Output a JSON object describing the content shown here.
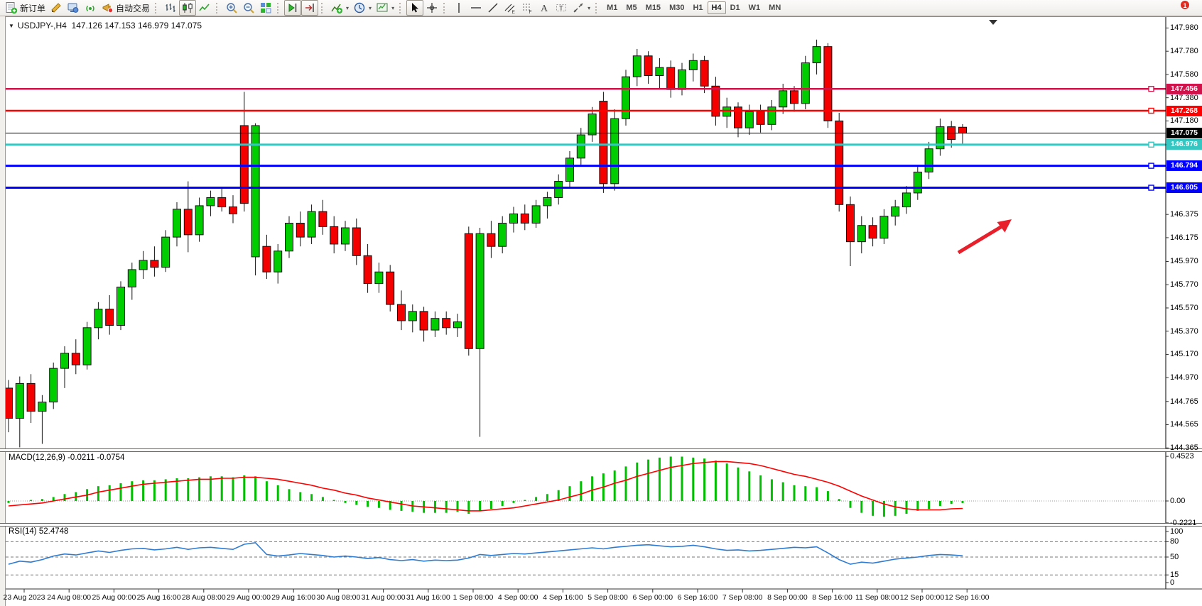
{
  "toolbar": {
    "caret_glyph": "▾",
    "groups": [
      {
        "name": "trade-group",
        "items": [
          {
            "name": "new-order-button",
            "icon": "new-order",
            "label": "新订单"
          },
          {
            "name": "metaeditor-button",
            "icon": "editor"
          },
          {
            "name": "strategy-tester-button",
            "icon": "tester"
          },
          {
            "name": "signals-button",
            "icon": "signals"
          },
          {
            "name": "auto-trading-button",
            "icon": "autotrading",
            "label": "自动交易"
          }
        ]
      },
      {
        "name": "chart-type-group",
        "items": [
          {
            "name": "bar-chart-button",
            "icon": "chart-bars"
          },
          {
            "name": "candlestick-chart-button",
            "icon": "chart-candles",
            "active": true
          },
          {
            "name": "line-chart-button",
            "icon": "chart-line"
          }
        ]
      },
      {
        "name": "zoom-group",
        "items": [
          {
            "name": "zoom-in-button",
            "icon": "zoom-in"
          },
          {
            "name": "zoom-out-button",
            "icon": "zoom-out"
          },
          {
            "name": "tile-windows-button",
            "icon": "tile-windows"
          }
        ]
      },
      {
        "name": "scroll-group",
        "items": [
          {
            "name": "auto-scroll-button",
            "icon": "auto-scroll",
            "active": true
          },
          {
            "name": "chart-shift-button",
            "icon": "chart-shift",
            "active": true
          }
        ]
      },
      {
        "name": "insert-group",
        "items": [
          {
            "name": "indicators-button",
            "icon": "indicators",
            "caret": true
          },
          {
            "name": "periods-button",
            "icon": "periods",
            "caret": true
          },
          {
            "name": "templates-button",
            "icon": "templates",
            "caret": true
          }
        ]
      },
      {
        "name": "pointer-group",
        "items": [
          {
            "name": "cursor-button",
            "icon": "cursor",
            "active": true
          },
          {
            "name": "crosshair-button",
            "icon": "crosshair"
          }
        ]
      },
      {
        "name": "draw-group",
        "items": [
          {
            "name": "vertical-line-button",
            "icon": "vline"
          },
          {
            "name": "horizontal-line-button",
            "icon": "hline"
          },
          {
            "name": "trendline-button",
            "icon": "trendline"
          },
          {
            "name": "equidistant-channel-button",
            "icon": "channel"
          },
          {
            "name": "fibonacci-button",
            "icon": "fibonacci"
          },
          {
            "name": "text-button",
            "icon": "text"
          },
          {
            "name": "label-button",
            "icon": "label"
          },
          {
            "name": "shapes-button",
            "icon": "shapes",
            "caret": true
          }
        ]
      },
      {
        "name": "timeframe-group",
        "items": [
          {
            "name": "timeframe-m1",
            "label": "M1",
            "tf": true
          },
          {
            "name": "timeframe-m5",
            "label": "M5",
            "tf": true
          },
          {
            "name": "timeframe-m15",
            "label": "M15",
            "tf": true
          },
          {
            "name": "timeframe-m30",
            "label": "M30",
            "tf": true
          },
          {
            "name": "timeframe-h1",
            "label": "H1",
            "tf": true
          },
          {
            "name": "timeframe-h4",
            "label": "H4",
            "tf": true,
            "active": true
          },
          {
            "name": "timeframe-d1",
            "label": "D1",
            "tf": true
          },
          {
            "name": "timeframe-w1",
            "label": "W1",
            "tf": true
          },
          {
            "name": "timeframe-mn",
            "label": "MN",
            "tf": true
          }
        ]
      }
    ],
    "right": [
      {
        "name": "search-button",
        "icon": "search"
      },
      {
        "name": "chat-button",
        "icon": "chat",
        "badge": "1"
      }
    ]
  },
  "chart": {
    "title": {
      "collapse_glyph": "▼",
      "symbol": "USDJPY-,H4",
      "ohlc": "147.126 147.153 146.979 147.075"
    },
    "price_lines": [
      {
        "name": "price-line-147456",
        "label": "147.456",
        "price": 147.456,
        "color": "#D1134B",
        "width": 2.5,
        "handle": true
      },
      {
        "name": "price-line-147268",
        "label": "147.268",
        "price": 147.268,
        "color": "#FF0000",
        "width": 2.5,
        "handle": true
      },
      {
        "name": "bid-price-line",
        "label": "147.075",
        "price": 147.075,
        "color": "#000000",
        "width": 1,
        "handle": false,
        "current": true
      },
      {
        "name": "price-line-146976",
        "label": "146.976",
        "price": 146.976,
        "color": "#36C6C2",
        "width": 3,
        "handle": true
      },
      {
        "name": "price-line-146794",
        "label": "146.794",
        "price": 146.794,
        "color": "#0000FF",
        "width": 3,
        "handle": true
      },
      {
        "name": "price-line-146605",
        "label": "146.605",
        "price": 146.605,
        "color": "#0000FF",
        "width": 3,
        "handle": true
      }
    ],
    "indicator_panels": {
      "macd": {
        "label": "MACD(12,26,9)",
        "values": "-0.0211 -0.0754",
        "scale": [
          "0.4523",
          "0.00",
          "-0.2221"
        ]
      },
      "rsi": {
        "label": "RSI(14)",
        "value": "52.4748",
        "scale": [
          "100",
          "80",
          "50",
          "15",
          "0"
        ],
        "levels": [
          80,
          50,
          15
        ]
      }
    },
    "annotations": {
      "arrow_color": "#E8202C"
    }
  },
  "chart_data": {
    "type": "candlestick",
    "symbol": "USDJPY-",
    "period": "H4",
    "title": "USDJPY-,H4 147.126 147.153 146.979 147.075",
    "last_ohlc": {
      "open": 147.126,
      "high": 147.153,
      "low": 146.979,
      "close": 147.075
    },
    "colors": {
      "bull": "#00CD00",
      "bear": "#F50000",
      "wick": "#111111",
      "macd_hist": "#00BE00",
      "macd_signal": "#FF0000",
      "rsi_line": "#2E7BD2"
    },
    "price_levels": [
      147.456,
      147.268,
      147.075,
      146.976,
      146.794,
      146.605
    ],
    "y_axis": {
      "top_price": 148.05,
      "bottom_price": 144.365,
      "ticks": [
        "147.980",
        "147.780",
        "147.580",
        "147.380",
        "147.180",
        "146.975",
        "146.775",
        "146.575",
        "146.375",
        "146.175",
        "145.970",
        "145.770",
        "145.570",
        "145.370",
        "145.170",
        "144.970",
        "144.765",
        "144.565",
        "144.365"
      ]
    },
    "x_axis": {
      "labels": [
        "23 Aug 2023",
        "24 Aug 08:00",
        "25 Aug 00:00",
        "25 Aug 16:00",
        "28 Aug 08:00",
        "29 Aug 00:00",
        "29 Aug 16:00",
        "30 Aug 08:00",
        "31 Aug 00:00",
        "31 Aug 16:00",
        "1 Sep 08:00",
        "4 Sep 00:00",
        "4 Sep 16:00",
        "5 Sep 08:00",
        "6 Sep 00:00",
        "6 Sep 16:00",
        "7 Sep 08:00",
        "8 Sep 00:00",
        "8 Sep 16:00",
        "11 Sep 08:00",
        "12 Sep 00:00",
        "12 Sep 16:00"
      ]
    },
    "candles": [
      [
        144.88,
        144.95,
        144.5,
        144.62
      ],
      [
        144.62,
        144.98,
        144.37,
        144.92
      ],
      [
        144.92,
        145.0,
        144.58,
        144.68
      ],
      [
        144.68,
        144.82,
        144.4,
        144.76
      ],
      [
        144.76,
        145.1,
        144.7,
        145.05
      ],
      [
        145.05,
        145.24,
        144.88,
        145.18
      ],
      [
        145.18,
        145.3,
        145.0,
        145.08
      ],
      [
        145.08,
        145.45,
        145.04,
        145.4
      ],
      [
        145.4,
        145.62,
        145.3,
        145.56
      ],
      [
        145.56,
        145.68,
        145.34,
        145.42
      ],
      [
        145.42,
        145.8,
        145.38,
        145.75
      ],
      [
        145.75,
        145.96,
        145.64,
        145.9
      ],
      [
        145.9,
        146.06,
        145.82,
        145.98
      ],
      [
        145.98,
        146.1,
        145.84,
        145.92
      ],
      [
        145.92,
        146.24,
        145.88,
        146.18
      ],
      [
        146.18,
        146.48,
        146.1,
        146.42
      ],
      [
        146.42,
        146.66,
        146.05,
        146.2
      ],
      [
        146.2,
        146.52,
        146.14,
        146.45
      ],
      [
        146.45,
        146.58,
        146.36,
        146.52
      ],
      [
        146.52,
        146.6,
        146.4,
        146.44
      ],
      [
        146.44,
        146.54,
        146.3,
        146.38
      ],
      [
        147.14,
        147.43,
        146.4,
        146.47
      ],
      [
        146.01,
        147.16,
        145.85,
        147.14
      ],
      [
        146.1,
        146.2,
        145.82,
        145.88
      ],
      [
        145.88,
        146.12,
        145.78,
        146.06
      ],
      [
        146.06,
        146.36,
        146.0,
        146.3
      ],
      [
        146.3,
        146.4,
        146.1,
        146.18
      ],
      [
        146.18,
        146.46,
        146.12,
        146.4
      ],
      [
        146.4,
        146.5,
        146.2,
        146.27
      ],
      [
        146.27,
        146.36,
        146.04,
        146.12
      ],
      [
        146.12,
        146.32,
        146.06,
        146.26
      ],
      [
        146.26,
        146.34,
        145.94,
        146.02
      ],
      [
        146.02,
        146.12,
        145.7,
        145.78
      ],
      [
        145.78,
        145.96,
        145.7,
        145.88
      ],
      [
        145.88,
        145.94,
        145.54,
        145.6
      ],
      [
        145.6,
        145.72,
        145.38,
        145.46
      ],
      [
        145.46,
        145.6,
        145.36,
        145.54
      ],
      [
        145.54,
        145.58,
        145.28,
        145.38
      ],
      [
        145.38,
        145.54,
        145.32,
        145.48
      ],
      [
        145.48,
        145.54,
        145.34,
        145.4
      ],
      [
        145.4,
        145.52,
        145.32,
        145.45
      ],
      [
        146.21,
        146.27,
        145.16,
        145.22
      ],
      [
        145.22,
        146.26,
        144.46,
        146.21
      ],
      [
        146.21,
        146.32,
        146.0,
        146.1
      ],
      [
        146.1,
        146.36,
        146.04,
        146.3
      ],
      [
        146.3,
        146.44,
        146.22,
        146.38
      ],
      [
        146.38,
        146.46,
        146.24,
        146.3
      ],
      [
        146.3,
        146.5,
        146.26,
        146.45
      ],
      [
        146.45,
        146.57,
        146.34,
        146.52
      ],
      [
        146.52,
        146.72,
        146.46,
        146.66
      ],
      [
        146.66,
        146.92,
        146.6,
        146.86
      ],
      [
        146.86,
        147.12,
        146.8,
        147.06
      ],
      [
        147.06,
        147.3,
        147.0,
        147.24
      ],
      [
        147.35,
        147.43,
        146.56,
        146.64
      ],
      [
        146.64,
        147.28,
        146.58,
        147.2
      ],
      [
        147.2,
        147.62,
        147.14,
        147.56
      ],
      [
        147.56,
        147.8,
        147.48,
        147.74
      ],
      [
        147.74,
        147.78,
        147.5,
        147.57
      ],
      [
        147.57,
        147.72,
        147.46,
        147.64
      ],
      [
        147.64,
        147.7,
        147.38,
        147.45
      ],
      [
        147.45,
        147.68,
        147.4,
        147.62
      ],
      [
        147.62,
        147.76,
        147.52,
        147.7
      ],
      [
        147.7,
        147.74,
        147.42,
        147.48
      ],
      [
        147.48,
        147.56,
        147.14,
        147.22
      ],
      [
        147.22,
        147.38,
        147.12,
        147.3
      ],
      [
        147.3,
        147.34,
        147.04,
        147.12
      ],
      [
        147.12,
        147.32,
        147.06,
        147.26
      ],
      [
        147.26,
        147.32,
        147.08,
        147.15
      ],
      [
        147.15,
        147.36,
        147.1,
        147.3
      ],
      [
        147.3,
        147.5,
        147.24,
        147.44
      ],
      [
        147.44,
        147.48,
        147.26,
        147.33
      ],
      [
        147.33,
        147.74,
        147.28,
        147.68
      ],
      [
        147.68,
        147.88,
        147.58,
        147.82
      ],
      [
        147.82,
        147.85,
        147.12,
        147.18
      ],
      [
        147.18,
        147.25,
        146.4,
        146.46
      ],
      [
        146.46,
        146.53,
        145.93,
        146.14
      ],
      [
        146.14,
        146.36,
        146.04,
        146.28
      ],
      [
        146.28,
        146.35,
        146.1,
        146.17
      ],
      [
        146.17,
        146.42,
        146.12,
        146.36
      ],
      [
        146.36,
        146.5,
        146.28,
        146.44
      ],
      [
        146.44,
        146.62,
        146.38,
        146.56
      ],
      [
        146.56,
        146.8,
        146.5,
        146.74
      ],
      [
        146.74,
        147.0,
        146.68,
        146.94
      ],
      [
        146.94,
        147.2,
        146.88,
        147.13
      ],
      [
        147.13,
        147.18,
        146.95,
        147.02
      ],
      [
        147.126,
        147.153,
        146.979,
        147.075
      ]
    ],
    "macd": {
      "histogram": [
        -0.02,
        0.0,
        0.01,
        0.02,
        0.04,
        0.07,
        0.09,
        0.12,
        0.15,
        0.16,
        0.18,
        0.2,
        0.21,
        0.21,
        0.22,
        0.23,
        0.23,
        0.24,
        0.25,
        0.25,
        0.24,
        0.26,
        0.25,
        0.2,
        0.16,
        0.12,
        0.09,
        0.07,
        0.04,
        0.01,
        -0.02,
        -0.04,
        -0.06,
        -0.07,
        -0.09,
        -0.1,
        -0.11,
        -0.12,
        -0.12,
        -0.12,
        -0.11,
        -0.13,
        -0.1,
        -0.08,
        -0.05,
        -0.02,
        0.01,
        0.04,
        0.07,
        0.11,
        0.15,
        0.2,
        0.25,
        0.28,
        0.31,
        0.35,
        0.39,
        0.42,
        0.44,
        0.45,
        0.45,
        0.44,
        0.43,
        0.41,
        0.38,
        0.34,
        0.3,
        0.26,
        0.22,
        0.19,
        0.16,
        0.15,
        0.14,
        0.1,
        0.02,
        -0.07,
        -0.12,
        -0.15,
        -0.16,
        -0.15,
        -0.13,
        -0.1,
        -0.08,
        -0.05,
        -0.03,
        -0.0211
      ],
      "signal": [
        -0.05,
        -0.04,
        -0.03,
        -0.02,
        0.0,
        0.02,
        0.04,
        0.06,
        0.09,
        0.11,
        0.13,
        0.15,
        0.17,
        0.18,
        0.19,
        0.2,
        0.21,
        0.22,
        0.22,
        0.23,
        0.23,
        0.24,
        0.24,
        0.23,
        0.22,
        0.2,
        0.18,
        0.16,
        0.13,
        0.11,
        0.08,
        0.06,
        0.03,
        0.01,
        -0.01,
        -0.03,
        -0.05,
        -0.06,
        -0.07,
        -0.08,
        -0.09,
        -0.1,
        -0.1,
        -0.09,
        -0.08,
        -0.07,
        -0.05,
        -0.03,
        -0.01,
        0.01,
        0.04,
        0.07,
        0.11,
        0.14,
        0.18,
        0.21,
        0.25,
        0.28,
        0.31,
        0.34,
        0.36,
        0.38,
        0.39,
        0.4,
        0.4,
        0.39,
        0.38,
        0.36,
        0.33,
        0.3,
        0.27,
        0.25,
        0.22,
        0.19,
        0.15,
        0.1,
        0.05,
        0.01,
        -0.03,
        -0.06,
        -0.08,
        -0.09,
        -0.09,
        -0.09,
        -0.08,
        -0.0754
      ]
    },
    "rsi": [
      36,
      42,
      40,
      45,
      52,
      56,
      54,
      58,
      62,
      59,
      63,
      66,
      67,
      64,
      66,
      69,
      65,
      68,
      69,
      67,
      65,
      75,
      78,
      55,
      52,
      54,
      57,
      55,
      53,
      50,
      52,
      50,
      47,
      49,
      45,
      43,
      45,
      42,
      44,
      43,
      44,
      48,
      55,
      53,
      55,
      57,
      56,
      58,
      60,
      62,
      64,
      66,
      68,
      66,
      69,
      71,
      73,
      74,
      72,
      70,
      71,
      73,
      70,
      66,
      63,
      64,
      62,
      63,
      65,
      67,
      69,
      68,
      70,
      58,
      45,
      36,
      40,
      38,
      42,
      46,
      48,
      50,
      53,
      55,
      54,
      52.47
    ]
  }
}
